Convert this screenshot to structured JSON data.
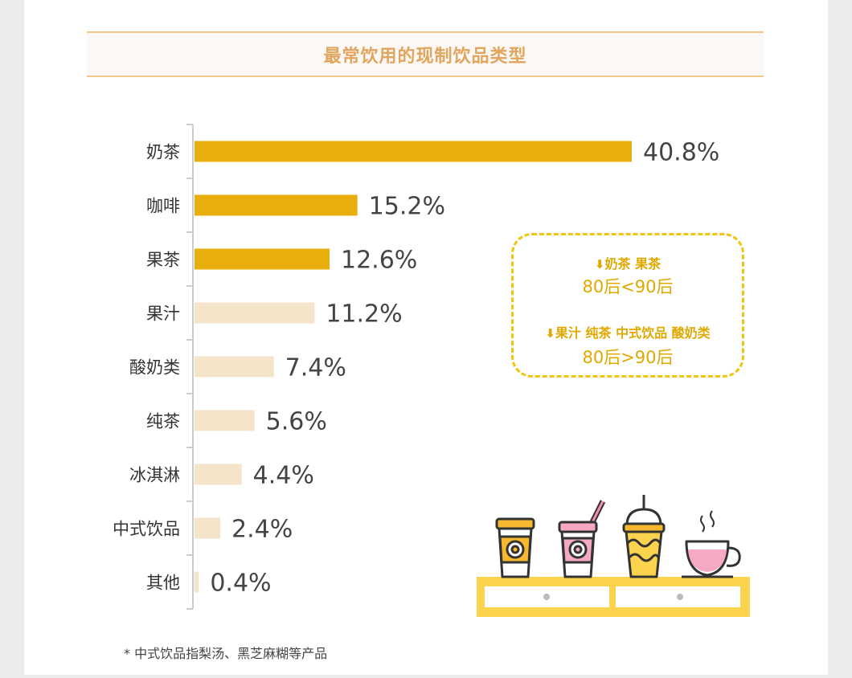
{
  "title": "最常饮用的现制饮品类型",
  "chart_data": {
    "type": "bar",
    "orientation": "horizontal",
    "categories": [
      "奶茶",
      "咖啡",
      "果茶",
      "果汁",
      "酸奶类",
      "纯茶",
      "冰淇淋",
      "中式饮品",
      "其他"
    ],
    "values": [
      40.8,
      15.2,
      12.6,
      11.2,
      7.4,
      5.6,
      4.4,
      2.4,
      0.4
    ],
    "value_labels": [
      "40.8%",
      "15.2%",
      "12.6%",
      "11.2%",
      "7.4%",
      "5.6%",
      "4.4%",
      "2.4%",
      "0.4%"
    ],
    "highlighted": [
      true,
      true,
      true,
      false,
      false,
      false,
      false,
      false,
      false
    ],
    "xlim": [
      0,
      40.8
    ],
    "grid": false,
    "colors": {
      "highlight": "#e8ae0b",
      "normal": "#f4e4c9"
    }
  },
  "callout": {
    "line1": "奶茶 果茶",
    "line2": "80后<90后",
    "line3": "果汁 纯茶 中式饮品 酸奶类",
    "line4": "80后>90后",
    "arrow_icon": "down-arrow-icon"
  },
  "footnote": "* 中式饮品指梨汤、黑芝麻糊等产品",
  "illustration": {
    "items": [
      "coffee-cup-icon",
      "bubble-tea-cup-icon",
      "frappe-cup-icon",
      "tea-cup-icon",
      "shelf-icon"
    ]
  },
  "colors": {
    "accent": "#e2a55e",
    "callout": "#e0a800",
    "title_border": "#f2c68f"
  }
}
